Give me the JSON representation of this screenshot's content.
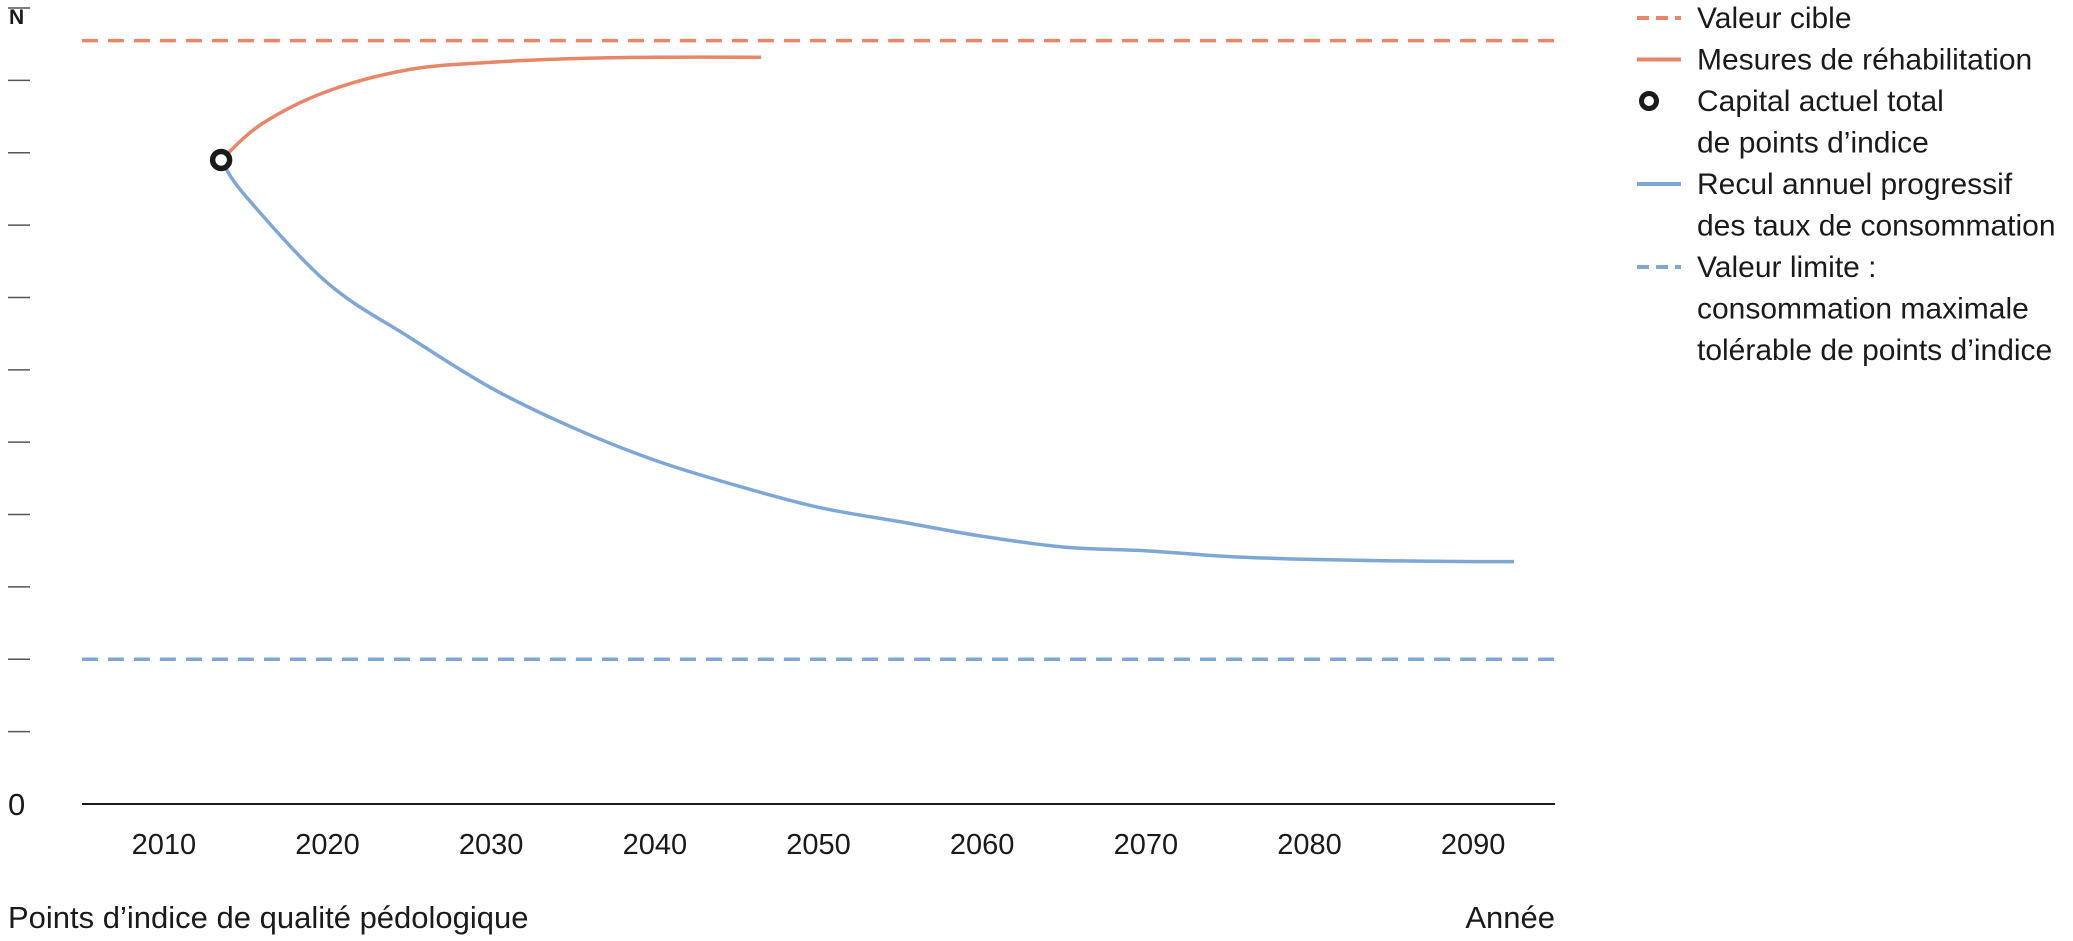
{
  "chart_data": {
    "type": "line",
    "ylabel": "Points d’indice de qualité pédologique",
    "xlabel": "Année",
    "y_top_label": "N",
    "y_zero_label": "0",
    "xlim": [
      2005,
      2095
    ],
    "ylim": [
      0,
      11
    ],
    "y_tick_count": 11,
    "x_ticks": [
      2010,
      2020,
      2030,
      2040,
      2050,
      2060,
      2070,
      2080,
      2090
    ],
    "grid": false,
    "legend_position": "top-right",
    "colors": {
      "target": "#e8866a",
      "limit": "#7ea7d6",
      "marker": "#1a1a1a",
      "axis": "#1a1a1a"
    },
    "series": [
      {
        "name": "Valeur cible",
        "style": "dashed",
        "color": "#e8866a",
        "x": [
          2005,
          2095
        ],
        "y": [
          10.55,
          10.55
        ]
      },
      {
        "name": "Mesures de réhabilitation",
        "style": "solid",
        "color": "#e8866a",
        "x": [
          2013.5,
          2016,
          2020,
          2025,
          2030,
          2035,
          2040,
          2046.5
        ],
        "y": [
          8.9,
          9.4,
          9.85,
          10.15,
          10.25,
          10.3,
          10.32,
          10.32
        ]
      },
      {
        "name": "Capital actuel total de points d’indice",
        "style": "marker",
        "color": "#1a1a1a",
        "x": [
          2013.5
        ],
        "y": [
          8.9
        ]
      },
      {
        "name": "Recul annuel progressif des taux de consommation",
        "style": "solid",
        "color": "#7ea7d6",
        "x": [
          2013.5,
          2015,
          2020,
          2025,
          2030,
          2035,
          2040,
          2045,
          2050,
          2055,
          2060,
          2065,
          2070,
          2075,
          2080,
          2085,
          2090,
          2092.5
        ],
        "y": [
          8.9,
          8.4,
          7.2,
          6.45,
          5.75,
          5.2,
          4.75,
          4.4,
          4.1,
          3.9,
          3.7,
          3.55,
          3.5,
          3.42,
          3.38,
          3.36,
          3.35,
          3.35
        ]
      },
      {
        "name": "Valeur limite : consommation maximale tolérable de points d’indice",
        "style": "dashed",
        "color": "#7ea7d6",
        "x": [
          2005,
          2095
        ],
        "y": [
          2.0,
          2.0
        ]
      }
    ],
    "legend": [
      {
        "style": "dashed",
        "color": "#e8866a",
        "lines": [
          "Valeur cible"
        ]
      },
      {
        "style": "solid",
        "color": "#e8866a",
        "lines": [
          "Mesures de réhabilitation"
        ]
      },
      {
        "style": "marker",
        "color": "#1a1a1a",
        "lines": [
          "Capital actuel total",
          "de points d’indice"
        ]
      },
      {
        "style": "solid",
        "color": "#7ea7d6",
        "lines": [
          "Recul annuel progressif",
          "des taux de consommation"
        ]
      },
      {
        "style": "dashed",
        "color": "#7ea7d6",
        "lines": [
          "Valeur limite :",
          "consommation maximale",
          "tolérable de points d’indice"
        ]
      }
    ]
  }
}
